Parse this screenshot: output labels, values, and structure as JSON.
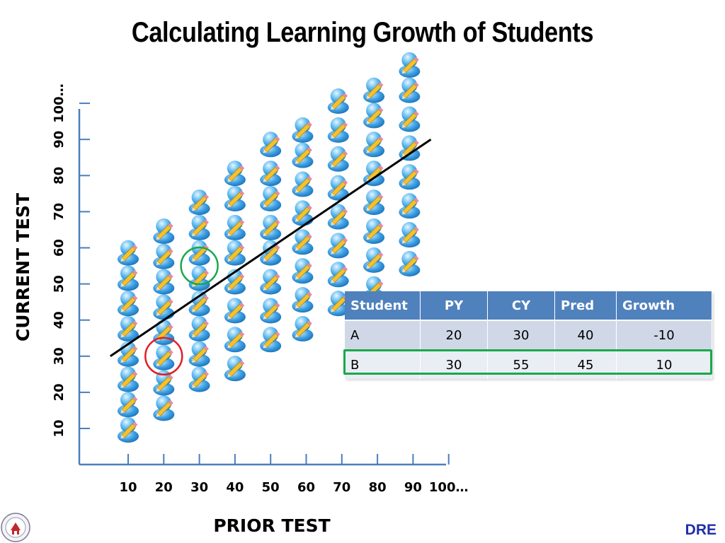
{
  "slide": {
    "title": "Calculating Learning Growth of Students",
    "footer_label": "DRE",
    "logo_name": "school-district-logo"
  },
  "colors": {
    "axis": "#4a7ebb",
    "trend_line": "#000000",
    "circle_green": "#1aa84a",
    "circle_red": "#dd1f26",
    "icon_body": "#3ea1e6",
    "pencil": "#f2c230",
    "table_header": "#4f81bd",
    "table_row_a": "#d0d8e8",
    "table_row_b": "#e9edf4",
    "footer_text": "#1f2ea8"
  },
  "chart_data": {
    "type": "scatter",
    "title": "Calculating Learning Growth of Students",
    "xlabel": "PRIOR TEST",
    "ylabel": "CURRENT TEST",
    "xlim": [
      5,
      105
    ],
    "ylim": [
      0,
      110
    ],
    "x_ticks": [
      10,
      20,
      30,
      40,
      50,
      60,
      70,
      80,
      90,
      100
    ],
    "x_tick_labels": [
      "10",
      "20",
      "30",
      "40",
      "50",
      "60",
      "70",
      "80",
      "90",
      "100…"
    ],
    "y_ticks": [
      10,
      20,
      30,
      40,
      50,
      60,
      70,
      80,
      90,
      100
    ],
    "y_tick_labels": [
      "10",
      "20",
      "30",
      "40",
      "50",
      "60",
      "70",
      "80",
      "90",
      "100…"
    ],
    "marker": "student-icon",
    "points": [
      {
        "x": 10,
        "y": 10
      },
      {
        "x": 10,
        "y": 17
      },
      {
        "x": 10,
        "y": 24
      },
      {
        "x": 10,
        "y": 31
      },
      {
        "x": 10,
        "y": 38
      },
      {
        "x": 10,
        "y": 45
      },
      {
        "x": 10,
        "y": 52
      },
      {
        "x": 10,
        "y": 59
      },
      {
        "x": 20,
        "y": 16
      },
      {
        "x": 20,
        "y": 23
      },
      {
        "x": 20,
        "y": 30
      },
      {
        "x": 20,
        "y": 37
      },
      {
        "x": 20,
        "y": 44
      },
      {
        "x": 20,
        "y": 51
      },
      {
        "x": 20,
        "y": 58
      },
      {
        "x": 20,
        "y": 65
      },
      {
        "x": 30,
        "y": 24
      },
      {
        "x": 30,
        "y": 31
      },
      {
        "x": 30,
        "y": 38
      },
      {
        "x": 30,
        "y": 45
      },
      {
        "x": 30,
        "y": 52
      },
      {
        "x": 30,
        "y": 59
      },
      {
        "x": 30,
        "y": 66
      },
      {
        "x": 30,
        "y": 73
      },
      {
        "x": 40,
        "y": 27
      },
      {
        "x": 40,
        "y": 35
      },
      {
        "x": 40,
        "y": 43
      },
      {
        "x": 40,
        "y": 51
      },
      {
        "x": 40,
        "y": 59
      },
      {
        "x": 40,
        "y": 66
      },
      {
        "x": 40,
        "y": 74
      },
      {
        "x": 40,
        "y": 81
      },
      {
        "x": 50,
        "y": 35
      },
      {
        "x": 50,
        "y": 43
      },
      {
        "x": 50,
        "y": 51
      },
      {
        "x": 50,
        "y": 59
      },
      {
        "x": 50,
        "y": 66
      },
      {
        "x": 50,
        "y": 74
      },
      {
        "x": 50,
        "y": 81
      },
      {
        "x": 50,
        "y": 89
      },
      {
        "x": 59,
        "y": 38
      },
      {
        "x": 59,
        "y": 46
      },
      {
        "x": 59,
        "y": 54
      },
      {
        "x": 59,
        "y": 62
      },
      {
        "x": 59,
        "y": 70
      },
      {
        "x": 59,
        "y": 78
      },
      {
        "x": 59,
        "y": 86
      },
      {
        "x": 59,
        "y": 93
      },
      {
        "x": 69,
        "y": 45
      },
      {
        "x": 69,
        "y": 53
      },
      {
        "x": 69,
        "y": 61
      },
      {
        "x": 69,
        "y": 69
      },
      {
        "x": 69,
        "y": 77
      },
      {
        "x": 69,
        "y": 85
      },
      {
        "x": 69,
        "y": 93
      },
      {
        "x": 69,
        "y": 101
      },
      {
        "x": 79,
        "y": 49
      },
      {
        "x": 79,
        "y": 57
      },
      {
        "x": 79,
        "y": 65
      },
      {
        "x": 79,
        "y": 73
      },
      {
        "x": 79,
        "y": 81
      },
      {
        "x": 79,
        "y": 89
      },
      {
        "x": 79,
        "y": 97
      },
      {
        "x": 79,
        "y": 104
      },
      {
        "x": 89,
        "y": 56
      },
      {
        "x": 89,
        "y": 64
      },
      {
        "x": 89,
        "y": 72
      },
      {
        "x": 89,
        "y": 80
      },
      {
        "x": 89,
        "y": 88
      },
      {
        "x": 89,
        "y": 96
      },
      {
        "x": 89,
        "y": 104
      },
      {
        "x": 89,
        "y": 111
      }
    ],
    "trend_line": {
      "x": [
        5,
        95
      ],
      "y": [
        30,
        90
      ]
    },
    "highlights": [
      {
        "x": 30,
        "y": 55,
        "color": "green"
      },
      {
        "x": 20,
        "y": 30,
        "color": "red"
      }
    ],
    "grid": false,
    "legend": "none"
  },
  "table": {
    "headers": [
      "Student",
      "PY",
      "CY",
      "Pred",
      "Growth"
    ],
    "rows": [
      [
        "A",
        "20",
        "30",
        "40",
        "-10"
      ],
      [
        "B",
        "30",
        "55",
        "45",
        "10"
      ]
    ],
    "highlighted_row": "B"
  }
}
